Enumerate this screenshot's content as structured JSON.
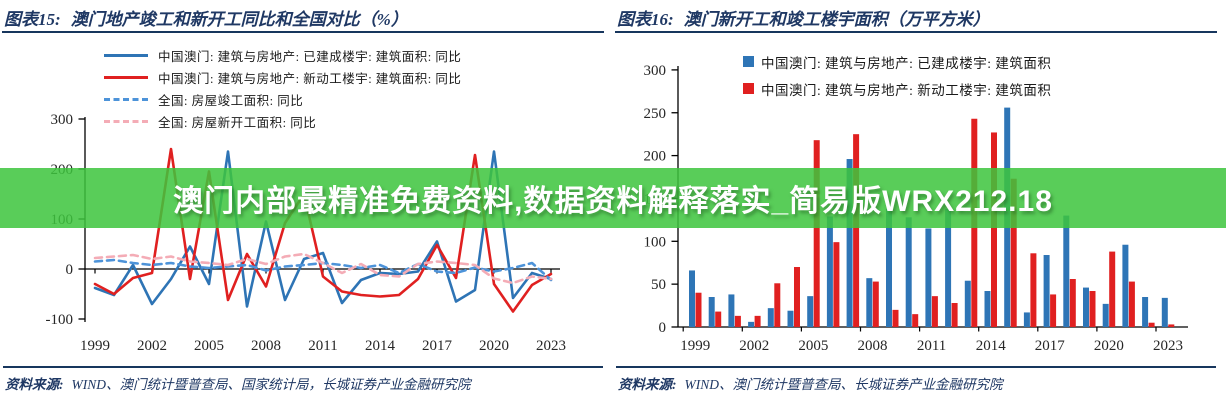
{
  "banner": {
    "text": "澳门内部最精准免费资料,数据资料解释落实_简易版WRX212.18",
    "bg_color": "#3EC53E",
    "text_color": "#FFFFFF"
  },
  "left_panel": {
    "title_label": "图表15:",
    "title_text": "澳门地产竣工和新开工同比和全国对比（%）",
    "source_label": "资料来源:",
    "source_text": "WIND、澳门统计暨普查局、国家统计局，长城证券产业金融研究院"
  },
  "right_panel": {
    "title_label": "图表16:",
    "title_text": "澳门新开工和竣工楼宇面积（万平方米）",
    "source_label": "资料来源:",
    "source_text": "WIND、澳门统计暨普查局、长城证券产业金融研究院"
  },
  "chart_data": [
    {
      "type": "line",
      "title": "澳门地产竣工和新开工同比和全国对比（%）",
      "unit": "%",
      "x": [
        1999,
        2000,
        2001,
        2002,
        2003,
        2004,
        2005,
        2006,
        2007,
        2008,
        2009,
        2010,
        2011,
        2012,
        2013,
        2014,
        2015,
        2016,
        2017,
        2018,
        2019,
        2020,
        2021,
        2022,
        2023
      ],
      "x_tick_labels": [
        "1999",
        "2002",
        "2005",
        "2008",
        "2011",
        "2014",
        "2017",
        "2020",
        "2023"
      ],
      "ylim": [
        -100,
        300
      ],
      "y_ticks": [
        -100,
        0,
        100,
        200,
        300
      ],
      "grid": false,
      "legend_position": "top-left",
      "series": [
        {
          "name": "中国澳门: 建筑与房地产: 已建成楼宇: 建筑面积: 同比",
          "color": "#2E74B5",
          "style": "solid",
          "values": [
            -38,
            -52,
            8,
            -70,
            -20,
            45,
            -30,
            235,
            -75,
            95,
            -62,
            20,
            32,
            -68,
            -22,
            -8,
            -10,
            -5,
            55,
            -65,
            -42,
            235,
            -58,
            -8,
            -20
          ]
        },
        {
          "name": "中国澳门: 建筑与房地产: 新动工楼宇: 建筑面积: 同比",
          "color": "#E02020",
          "style": "solid",
          "values": [
            -30,
            -50,
            -18,
            -8,
            240,
            -20,
            195,
            -62,
            30,
            -35,
            92,
            150,
            -15,
            -45,
            -52,
            -55,
            -52,
            -20,
            48,
            -18,
            228,
            -30,
            -85,
            -32,
            -10
          ]
        },
        {
          "name": "全国: 房屋竣工面积: 同比",
          "color": "#4D93D9",
          "style": "dashed",
          "values": [
            15,
            18,
            12,
            8,
            12,
            5,
            2,
            5,
            8,
            -3,
            5,
            8,
            12,
            8,
            2,
            8,
            -8,
            10,
            -5,
            -8,
            3,
            -5,
            2,
            12,
            -22
          ]
        },
        {
          "name": "全国: 房屋新开工面积: 同比",
          "color": "#F4ACB6",
          "style": "dashed",
          "values": [
            22,
            25,
            28,
            20,
            25,
            15,
            12,
            8,
            20,
            10,
            25,
            30,
            12,
            -8,
            10,
            -12,
            -15,
            10,
            15,
            12,
            8,
            -19,
            -28,
            -15,
            -20
          ]
        }
      ]
    },
    {
      "type": "bar",
      "title": "澳门新开工和竣工楼宇面积（万平方米）",
      "unit": "万平方米",
      "x": [
        1999,
        2000,
        2001,
        2002,
        2003,
        2004,
        2005,
        2006,
        2007,
        2008,
        2009,
        2010,
        2011,
        2012,
        2013,
        2014,
        2015,
        2016,
        2017,
        2018,
        2019,
        2020,
        2021,
        2022,
        2023
      ],
      "x_tick_labels": [
        "1999",
        "2002",
        "2005",
        "2008",
        "2011",
        "2014",
        "2017",
        "2020",
        "2023"
      ],
      "ylim": [
        0,
        300
      ],
      "y_ticks": [
        0,
        50,
        100,
        150,
        200,
        250,
        300
      ],
      "grid": false,
      "legend_position": "top-center",
      "series": [
        {
          "name": "中国澳门: 建筑与房地产: 已建成楼宇: 建筑面积",
          "color": "#2E75B6",
          "values": [
            66,
            35,
            38,
            6,
            22,
            19,
            36,
            129,
            196,
            57,
            138,
            128,
            115,
            138,
            54,
            42,
            256,
            17,
            84,
            130,
            46,
            27,
            96,
            35,
            34
          ]
        },
        {
          "name": "中国澳门: 建筑与房地产: 新动工楼宇: 建筑面积",
          "color": "#E02020",
          "values": [
            40,
            18,
            13,
            13,
            51,
            70,
            218,
            99,
            225,
            53,
            20,
            15,
            36,
            28,
            243,
            227,
            173,
            86,
            38,
            56,
            42,
            88,
            53,
            5,
            3
          ]
        }
      ]
    }
  ]
}
